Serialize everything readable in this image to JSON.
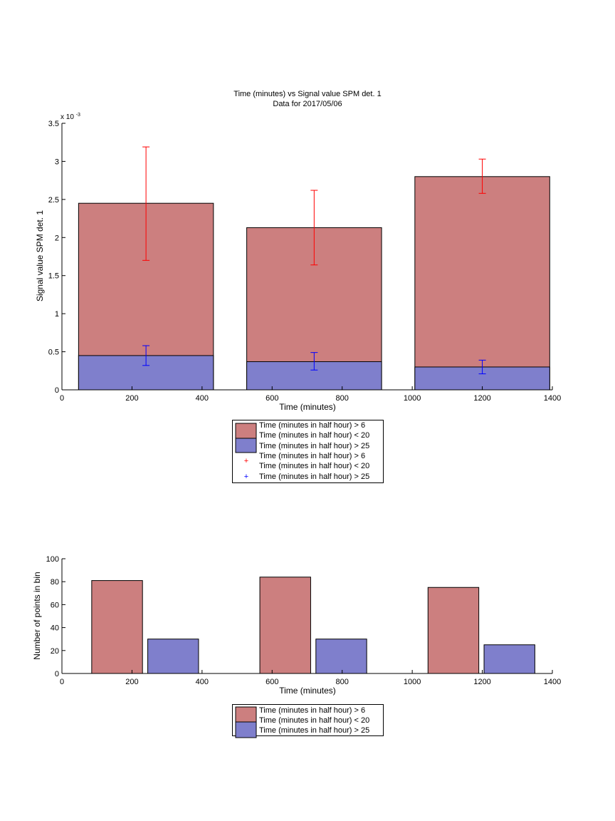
{
  "chart_data": [
    {
      "type": "bar",
      "title": "Time (minutes) vs Signal value SPM det. 1",
      "subtitle": "Data for 2017/05/06",
      "xlabel": "Time (minutes)",
      "ylabel": "Signal value SPM det. 1",
      "exponent_label": "x 10",
      "exponent_power": "-3",
      "xlim": [
        0,
        1400
      ],
      "ylim": [
        0,
        3.5
      ],
      "xticks": [
        "0",
        "200",
        "400",
        "600",
        "800",
        "1000",
        "1200",
        "1400"
      ],
      "yticks": [
        "0",
        "0.5",
        "1",
        "1.5",
        "2",
        "2.5",
        "3",
        "3.5"
      ],
      "bar_width": 385,
      "colors": {
        "red": "#cc7f7f",
        "blue": "#7f7fcc",
        "err_red": "#ff0000",
        "err_blue": "#0000ff"
      },
      "series": [
        {
          "legend_label": "Time (minutes in half hour) > 6\nTime (minutes in half hour) < 20",
          "x": [
            240,
            720,
            1200
          ],
          "values": [
            2.45,
            2.13,
            2.8
          ],
          "err_low": [
            1.7,
            1.64,
            2.58
          ],
          "err_high": [
            3.19,
            2.62,
            3.03
          ]
        },
        {
          "legend_label": "Time (minutes in half hour) > 25",
          "x": [
            240,
            720,
            1200
          ],
          "values": [
            0.45,
            0.37,
            0.3
          ],
          "err_low": [
            0.32,
            0.26,
            0.21
          ],
          "err_high": [
            0.58,
            0.49,
            0.39
          ]
        }
      ],
      "legend": {
        "entries": [
          {
            "line1": "Time (minutes in half hour) > 6",
            "line2": "Time (minutes in half hour) < 20"
          },
          {
            "line1": "Time (minutes in half hour) > 25"
          },
          {
            "line1": "Time (minutes in half hour) > 6",
            "line2": "Time (minutes in half hour) < 20"
          },
          {
            "line1": "Time (minutes in half hour) > 25"
          }
        ]
      }
    },
    {
      "type": "bar",
      "xlabel": "Time (minutes)",
      "ylabel": "Number of points in bin",
      "xlim": [
        0,
        1400
      ],
      "ylim": [
        0,
        100
      ],
      "xticks": [
        "0",
        "200",
        "400",
        "600",
        "800",
        "1000",
        "1200",
        "1400"
      ],
      "yticks": [
        "0",
        "20",
        "40",
        "60",
        "80",
        "100"
      ],
      "series": [
        {
          "x_start": [
            85,
            565,
            1045
          ],
          "x_end": [
            230,
            710,
            1190
          ],
          "values": [
            81,
            84,
            75
          ]
        },
        {
          "x_start": [
            245,
            725,
            1205
          ],
          "x_end": [
            390,
            870,
            1350
          ],
          "values": [
            30,
            30,
            25
          ]
        }
      ],
      "legend": {
        "entries": [
          {
            "line1": "Time (minutes in half hour) > 6",
            "line2": "Time (minutes in half hour) < 20"
          },
          {
            "line1": "Time (minutes in half hour) > 25"
          }
        ]
      }
    }
  ]
}
